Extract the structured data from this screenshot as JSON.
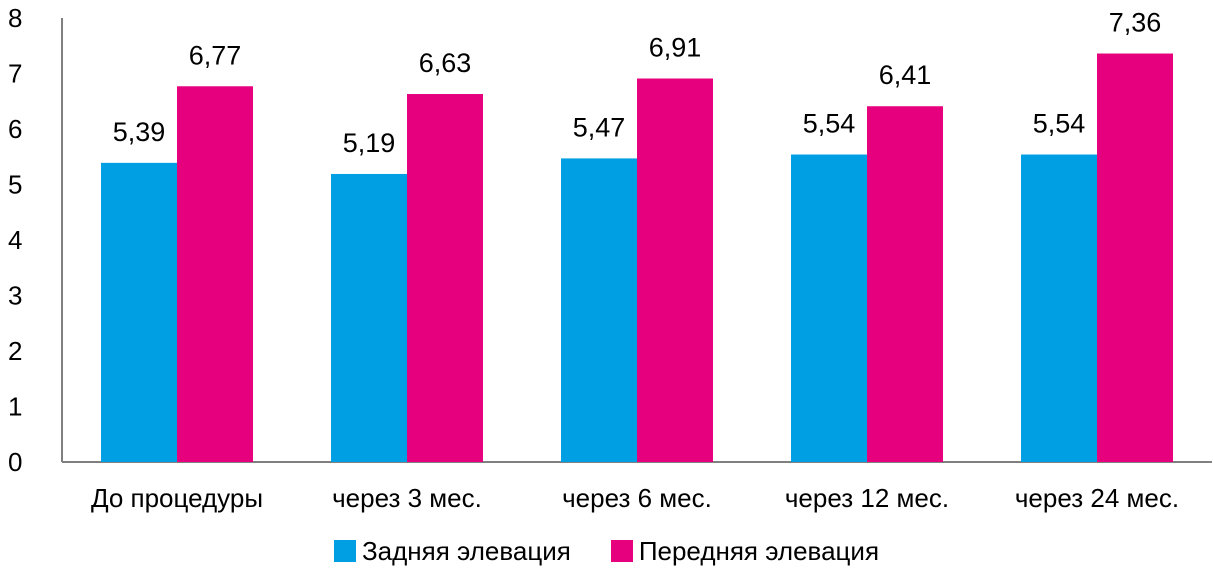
{
  "chart_data": {
    "type": "bar",
    "categories": [
      "До процедуры",
      "через 3 мес.",
      "через 6 мес.",
      "через 12 мес.",
      "через 24 мес."
    ],
    "series": [
      {
        "name": "Задняя элевация",
        "values": [
          5.39,
          5.19,
          5.47,
          5.54,
          5.54
        ],
        "labels": [
          "5,39",
          "5,19",
          "5,47",
          "5,54",
          "5,54"
        ],
        "color": "#009fe3"
      },
      {
        "name": "Передняя элевация",
        "values": [
          6.77,
          6.63,
          6.91,
          6.41,
          7.36
        ],
        "labels": [
          "6,77",
          "6,63",
          "6,91",
          "6,41",
          "7,36"
        ],
        "color": "#e6007e"
      }
    ],
    "yticks": [
      "0",
      "1",
      "2",
      "3",
      "4",
      "5",
      "6",
      "7",
      "8"
    ],
    "ylim": [
      0,
      8
    ],
    "grid": false,
    "legend": "bottom"
  }
}
